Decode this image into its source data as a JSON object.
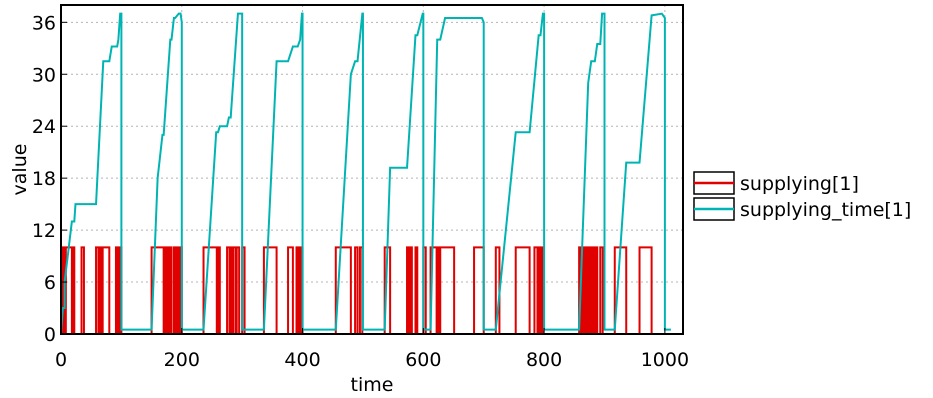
{
  "chart_data": {
    "type": "line",
    "title": "",
    "xlabel": "time",
    "ylabel": "value",
    "xlim": [
      0,
      1030
    ],
    "ylim": [
      0,
      38
    ],
    "x_ticks": [
      0,
      200,
      400,
      600,
      800,
      1000
    ],
    "y_ticks": [
      0,
      6,
      12,
      18,
      24,
      30,
      36
    ],
    "grid": true,
    "legend_position": "right",
    "series": [
      {
        "name": "supplying[1]",
        "color": "#e00000",
        "points": [
          [
            0,
            0
          ],
          [
            3,
            0
          ],
          [
            3,
            10
          ],
          [
            6,
            10
          ],
          [
            6,
            0
          ],
          [
            8,
            0
          ],
          [
            8,
            10
          ],
          [
            18,
            10
          ],
          [
            18,
            0
          ],
          [
            20,
            0
          ],
          [
            20,
            10
          ],
          [
            22,
            10
          ],
          [
            22,
            0
          ],
          [
            34,
            0
          ],
          [
            34,
            10
          ],
          [
            38,
            10
          ],
          [
            38,
            0
          ],
          [
            58,
            0
          ],
          [
            58,
            10
          ],
          [
            62,
            10
          ],
          [
            62,
            0
          ],
          [
            64,
            0
          ],
          [
            64,
            10
          ],
          [
            67,
            10
          ],
          [
            67,
            0
          ],
          [
            69,
            0
          ],
          [
            69,
            10
          ],
          [
            80,
            10
          ],
          [
            80,
            0
          ],
          [
            91,
            0
          ],
          [
            91,
            10
          ],
          [
            93,
            10
          ],
          [
            93,
            0
          ],
          [
            95,
            0
          ],
          [
            95,
            10
          ],
          [
            97,
            10
          ],
          [
            97,
            0
          ],
          [
            98,
            0
          ],
          [
            98,
            10
          ],
          [
            100,
            10
          ],
          [
            100,
            0
          ],
          [
            150,
            0
          ],
          [
            150,
            10
          ],
          [
            170,
            10
          ],
          [
            170,
            0
          ],
          [
            172,
            0
          ],
          [
            172,
            10
          ],
          [
            175,
            10
          ],
          [
            175,
            0
          ],
          [
            176,
            0
          ],
          [
            176,
            10
          ],
          [
            178,
            10
          ],
          [
            178,
            0
          ],
          [
            181,
            0
          ],
          [
            181,
            10
          ],
          [
            183,
            10
          ],
          [
            183,
            0
          ],
          [
            187,
            0
          ],
          [
            187,
            10
          ],
          [
            189,
            10
          ],
          [
            189,
            0
          ],
          [
            191,
            0
          ],
          [
            191,
            10
          ],
          [
            193,
            10
          ],
          [
            193,
            0
          ],
          [
            195,
            0
          ],
          [
            195,
            10
          ],
          [
            197,
            10
          ],
          [
            197,
            0
          ],
          [
            198,
            0
          ],
          [
            198,
            10
          ],
          [
            200,
            10
          ],
          [
            200,
            0
          ],
          [
            236,
            0
          ],
          [
            236,
            10
          ],
          [
            258,
            10
          ],
          [
            258,
            0
          ],
          [
            260,
            0
          ],
          [
            260,
            10
          ],
          [
            263,
            10
          ],
          [
            263,
            0
          ],
          [
            275,
            0
          ],
          [
            275,
            10
          ],
          [
            279,
            10
          ],
          [
            279,
            0
          ],
          [
            281,
            0
          ],
          [
            281,
            10
          ],
          [
            283,
            10
          ],
          [
            283,
            0
          ],
          [
            285,
            0
          ],
          [
            285,
            10
          ],
          [
            289,
            10
          ],
          [
            289,
            0
          ],
          [
            291,
            0
          ],
          [
            291,
            10
          ],
          [
            295,
            10
          ],
          [
            295,
            0
          ],
          [
            300,
            0
          ],
          [
            300,
            10
          ],
          [
            304,
            10
          ],
          [
            304,
            0
          ],
          [
            336,
            0
          ],
          [
            336,
            10
          ],
          [
            357,
            10
          ],
          [
            357,
            0
          ],
          [
            376,
            0
          ],
          [
            376,
            10
          ],
          [
            384,
            10
          ],
          [
            384,
            0
          ],
          [
            390,
            0
          ],
          [
            390,
            10
          ],
          [
            392,
            10
          ],
          [
            392,
            0
          ],
          [
            394,
            0
          ],
          [
            394,
            10
          ],
          [
            396,
            10
          ],
          [
            396,
            0
          ],
          [
            398,
            0
          ],
          [
            398,
            10
          ],
          [
            400,
            10
          ],
          [
            400,
            0
          ],
          [
            455,
            0
          ],
          [
            455,
            10
          ],
          [
            480,
            10
          ],
          [
            480,
            0
          ],
          [
            487,
            0
          ],
          [
            487,
            10
          ],
          [
            491,
            10
          ],
          [
            491,
            0
          ],
          [
            495,
            0
          ],
          [
            495,
            10
          ],
          [
            499,
            10
          ],
          [
            499,
            0
          ],
          [
            536,
            0
          ],
          [
            536,
            10
          ],
          [
            545,
            10
          ],
          [
            545,
            0
          ],
          [
            573,
            0
          ],
          [
            573,
            10
          ],
          [
            575,
            10
          ],
          [
            575,
            0
          ],
          [
            578,
            0
          ],
          [
            578,
            10
          ],
          [
            581,
            10
          ],
          [
            581,
            0
          ],
          [
            587,
            0
          ],
          [
            587,
            10
          ],
          [
            590,
            10
          ],
          [
            590,
            0
          ],
          [
            600,
            0
          ],
          [
            600,
            10
          ],
          [
            604,
            10
          ],
          [
            604,
            0
          ],
          [
            612,
            0
          ],
          [
            612,
            10
          ],
          [
            622,
            10
          ],
          [
            622,
            0
          ],
          [
            624,
            0
          ],
          [
            624,
            10
          ],
          [
            626,
            10
          ],
          [
            626,
            0
          ],
          [
            628,
            0
          ],
          [
            628,
            10
          ],
          [
            651,
            10
          ],
          [
            651,
            0
          ],
          [
            684,
            0
          ],
          [
            684,
            10
          ],
          [
            700,
            10
          ],
          [
            700,
            0
          ],
          [
            720,
            0
          ],
          [
            720,
            10
          ],
          [
            726,
            10
          ],
          [
            726,
            0
          ],
          [
            753,
            0
          ],
          [
            753,
            10
          ],
          [
            776,
            10
          ],
          [
            776,
            0
          ],
          [
            784,
            0
          ],
          [
            784,
            10
          ],
          [
            789,
            10
          ],
          [
            789,
            0
          ],
          [
            791,
            0
          ],
          [
            791,
            10
          ],
          [
            794,
            10
          ],
          [
            794,
            0
          ],
          [
            796,
            0
          ],
          [
            796,
            10
          ],
          [
            798,
            10
          ],
          [
            798,
            0
          ],
          [
            858,
            0
          ],
          [
            858,
            10
          ],
          [
            860,
            10
          ],
          [
            860,
            0
          ],
          [
            862,
            0
          ],
          [
            862,
            10
          ],
          [
            864,
            10
          ],
          [
            864,
            0
          ],
          [
            867,
            0
          ],
          [
            867,
            10
          ],
          [
            869,
            10
          ],
          [
            869,
            0
          ],
          [
            871,
            0
          ],
          [
            871,
            10
          ],
          [
            873,
            10
          ],
          [
            873,
            0
          ],
          [
            876,
            0
          ],
          [
            876,
            10
          ],
          [
            878,
            10
          ],
          [
            878,
            0
          ],
          [
            881,
            0
          ],
          [
            881,
            10
          ],
          [
            884,
            10
          ],
          [
            884,
            0
          ],
          [
            886,
            0
          ],
          [
            886,
            10
          ],
          [
            888,
            10
          ],
          [
            888,
            0
          ],
          [
            893,
            0
          ],
          [
            893,
            10
          ],
          [
            897,
            10
          ],
          [
            897,
            0
          ],
          [
            917,
            0
          ],
          [
            917,
            10
          ],
          [
            936,
            10
          ],
          [
            936,
            0
          ],
          [
            958,
            0
          ],
          [
            958,
            10
          ],
          [
            978,
            10
          ],
          [
            978,
            0
          ],
          [
            1010,
            0
          ]
        ]
      },
      {
        "name": "supplying_time[1]",
        "color": "#00b4b4",
        "points": [
          [
            0,
            0
          ],
          [
            3,
            3
          ],
          [
            6,
            3
          ],
          [
            6,
            6
          ],
          [
            18,
            13
          ],
          [
            22,
            13
          ],
          [
            24,
            15
          ],
          [
            58,
            15
          ],
          [
            70,
            31.5
          ],
          [
            80,
            31.5
          ],
          [
            84,
            33.2
          ],
          [
            93,
            33.2
          ],
          [
            95,
            34
          ],
          [
            98,
            37
          ],
          [
            100,
            37
          ],
          [
            100,
            0.5
          ],
          [
            150,
            0.5
          ],
          [
            160,
            18
          ],
          [
            168,
            23
          ],
          [
            170,
            23
          ],
          [
            181,
            34
          ],
          [
            183,
            34
          ],
          [
            187,
            36.5
          ],
          [
            189,
            36.5
          ],
          [
            195,
            37
          ],
          [
            198,
            37
          ],
          [
            200,
            36
          ],
          [
            200,
            0.5
          ],
          [
            236,
            0.5
          ],
          [
            257,
            23.3
          ],
          [
            260,
            23.3
          ],
          [
            263,
            24
          ],
          [
            275,
            24
          ],
          [
            278,
            25
          ],
          [
            281,
            25
          ],
          [
            293,
            37
          ],
          [
            296,
            37
          ],
          [
            300,
            37
          ],
          [
            300,
            0.5
          ],
          [
            336,
            0.5
          ],
          [
            357,
            31.5
          ],
          [
            376,
            31.5
          ],
          [
            384,
            33.2
          ],
          [
            392,
            33.2
          ],
          [
            396,
            34
          ],
          [
            399,
            37
          ],
          [
            400,
            37
          ],
          [
            400,
            0.5
          ],
          [
            455,
            0.5
          ],
          [
            480,
            30
          ],
          [
            487,
            31.5
          ],
          [
            491,
            31.5
          ],
          [
            499,
            37
          ],
          [
            500,
            37
          ],
          [
            500,
            0.5
          ],
          [
            536,
            0.5
          ],
          [
            545,
            19.2
          ],
          [
            573,
            19.2
          ],
          [
            587,
            34.5
          ],
          [
            590,
            34.5
          ],
          [
            599,
            37
          ],
          [
            600,
            37
          ],
          [
            600,
            0.5
          ],
          [
            612,
            0.5
          ],
          [
            623,
            34
          ],
          [
            628,
            34
          ],
          [
            636,
            36.5
          ],
          [
            697,
            36.5
          ],
          [
            700,
            36
          ],
          [
            700,
            0.5
          ],
          [
            720,
            0.5
          ],
          [
            753,
            23.3
          ],
          [
            776,
            23.3
          ],
          [
            791,
            34.5
          ],
          [
            794,
            34.5
          ],
          [
            798,
            37
          ],
          [
            800,
            37
          ],
          [
            800,
            0.5
          ],
          [
            858,
            0.5
          ],
          [
            873,
            29
          ],
          [
            878,
            31.5
          ],
          [
            884,
            31.5
          ],
          [
            888,
            33.5
          ],
          [
            893,
            33.5
          ],
          [
            896,
            37
          ],
          [
            900,
            37
          ],
          [
            900,
            0.5
          ],
          [
            917,
            0.5
          ],
          [
            936,
            19.8
          ],
          [
            958,
            19.8
          ],
          [
            978,
            36.8
          ],
          [
            995,
            37
          ],
          [
            1000,
            36.5
          ],
          [
            1000,
            0.5
          ],
          [
            1010,
            0.5
          ]
        ]
      }
    ]
  }
}
